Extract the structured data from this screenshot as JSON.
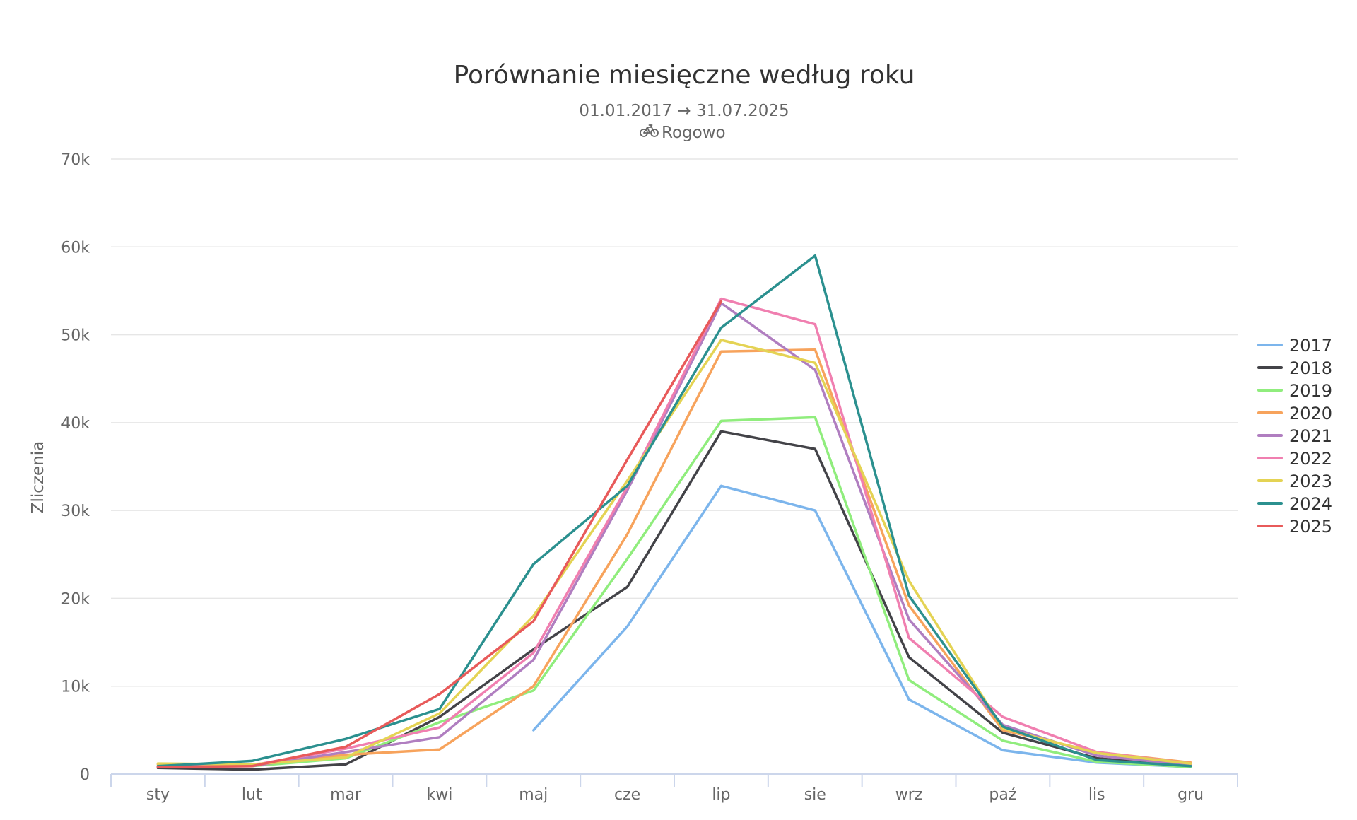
{
  "chart_data": {
    "type": "line",
    "title": "Porównanie miesięczne według roku",
    "subtitle": "01.01.2017 → 31.07.2025",
    "location": "Rogowo",
    "location_icon": "bicycle-icon",
    "ylabel": "Zliczenia",
    "xlabel": "",
    "ylim": [
      0,
      70000
    ],
    "yticks": [
      0,
      10000,
      20000,
      30000,
      40000,
      50000,
      60000,
      70000
    ],
    "ytick_labels": [
      "0",
      "10k",
      "20k",
      "30k",
      "40k",
      "50k",
      "60k",
      "70k"
    ],
    "categories": [
      "sty",
      "lut",
      "mar",
      "kwi",
      "maj",
      "cze",
      "lip",
      "sie",
      "wrz",
      "paź",
      "lis",
      "gru"
    ],
    "grid": true,
    "legend_position": "right",
    "series": [
      {
        "name": "2017",
        "color": "#7cb5ec",
        "values": [
          null,
          null,
          null,
          null,
          5000,
          16800,
          32800,
          30000,
          8500,
          2700,
          1300,
          800
        ]
      },
      {
        "name": "2018",
        "color": "#434348",
        "values": [
          700,
          500,
          1100,
          6500,
          14200,
          21300,
          39000,
          37000,
          13300,
          4700,
          1800,
          900
        ]
      },
      {
        "name": "2019",
        "color": "#90ed7d",
        "values": [
          900,
          900,
          1800,
          5900,
          9500,
          24500,
          40200,
          40600,
          10700,
          3800,
          1400,
          800
        ]
      },
      {
        "name": "2020",
        "color": "#f7a35c",
        "values": [
          1100,
          1000,
          2200,
          2800,
          10000,
          27300,
          48100,
          48300,
          19200,
          5000,
          2500,
          1300
        ]
      },
      {
        "name": "2021",
        "color": "#b07ec0",
        "values": [
          800,
          900,
          2500,
          4200,
          13000,
          32300,
          53600,
          46000,
          17600,
          5600,
          2100,
          1000
        ]
      },
      {
        "name": "2022",
        "color": "#f07fb0",
        "values": [
          800,
          1000,
          2900,
          5300,
          13800,
          32700,
          54100,
          51200,
          15500,
          6500,
          2500,
          1200
        ]
      },
      {
        "name": "2023",
        "color": "#e4d354",
        "values": [
          1200,
          1100,
          1900,
          6900,
          18000,
          33400,
          49400,
          46800,
          22000,
          5200,
          2400,
          1200
        ]
      },
      {
        "name": "2024",
        "color": "#2b908f",
        "values": [
          900,
          1500,
          4000,
          7400,
          23900,
          32800,
          50800,
          59000,
          20300,
          5400,
          1600,
          900
        ]
      },
      {
        "name": "2025",
        "color": "#e85a5a",
        "values": [
          800,
          900,
          3100,
          9100,
          17400,
          35800,
          53800,
          null,
          null,
          null,
          null,
          null
        ]
      }
    ]
  }
}
